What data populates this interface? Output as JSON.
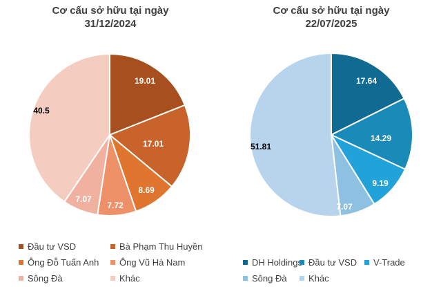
{
  "chart_data": [
    {
      "type": "pie",
      "title_lines": [
        "Cơ cấu sở hữu tại ngày",
        "31/12/2024"
      ],
      "slices": [
        {
          "label": "Đầu tư VSD",
          "value": 19.01,
          "color": "#a84f1f",
          "value_text": "19.01"
        },
        {
          "label": "Bà Phạm Thu Huyền",
          "value": 17.01,
          "color": "#c8642b",
          "value_text": "17.01"
        },
        {
          "label": "Ông Đỗ Tuấn Anh",
          "value": 8.69,
          "color": "#e0752f",
          "value_text": "8.69"
        },
        {
          "label": "Ông Vũ Hà Nam",
          "value": 7.72,
          "color": "#ee9068",
          "value_text": "7.72"
        },
        {
          "label": "Sông Đà",
          "value": 7.07,
          "color": "#f1b1a0",
          "value_text": "7.07"
        },
        {
          "label": "Khác",
          "value": 40.5,
          "color": "#f5ccc0",
          "value_text": "40.5"
        }
      ],
      "legend_placement": "bottom"
    },
    {
      "type": "pie",
      "title_lines": [
        "Cơ cấu sở hữu tại ngày",
        "22/07/2025"
      ],
      "slices": [
        {
          "label": "DH Holdings",
          "value": 17.64,
          "color": "#116a92",
          "value_text": "17.64"
        },
        {
          "label": "Đầu tư VSD",
          "value": 14.29,
          "color": "#1a8ab8",
          "value_text": "14.29"
        },
        {
          "label": "V-Trade",
          "value": 9.19,
          "color": "#21a3d9",
          "value_text": "9.19"
        },
        {
          "label": "Sông Đà",
          "value": 7.07,
          "color": "#8ec0e2",
          "value_text": "7.07"
        },
        {
          "label": "Khác",
          "value": 51.81,
          "color": "#b7d4ec",
          "value_text": "51.81"
        }
      ],
      "legend_placement": "bottom"
    }
  ]
}
